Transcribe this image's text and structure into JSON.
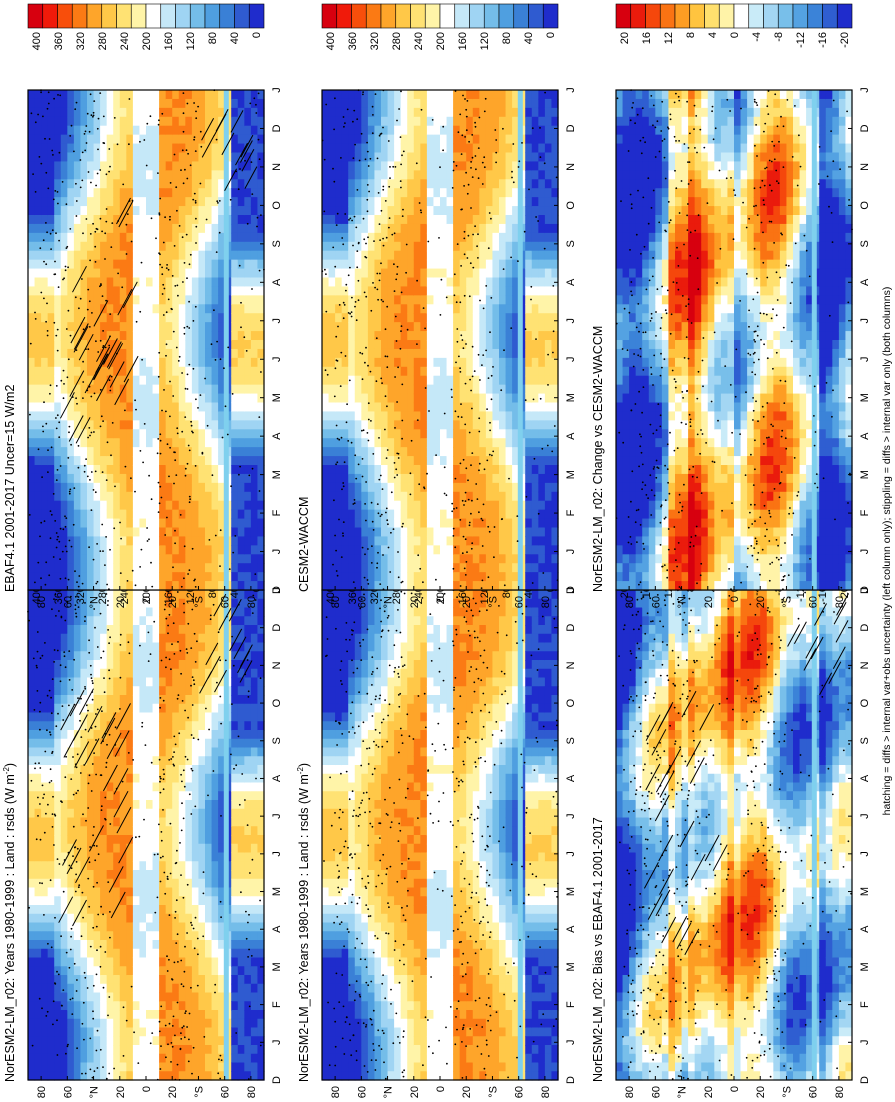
{
  "footer_note": "hatching = diffs > internal var+obs uncertainty (left column only); stippling = diffs > internal var only (both columns)",
  "chart_data": [
    {
      "type": "heatmap",
      "id": "p1",
      "title": "NorESM2-LM_r02: Years 1980-1999 : Land : rsds (W m",
      "title_sup": "-2",
      "title_close": ")",
      "lat_ticks": [
        "80",
        "60",
        "°N",
        "20",
        "0",
        "20",
        "°S",
        "60",
        "80"
      ],
      "month_ticks": [
        "D",
        "J",
        "F",
        "M",
        "A",
        "M",
        "J",
        "J",
        "A",
        "S",
        "O",
        "N",
        "D",
        "J"
      ],
      "colorbar_labels": [
        "400",
        "360",
        "320",
        "280",
        "240",
        "200",
        "160",
        "120",
        "80",
        "40",
        "0"
      ],
      "scheme": "abs",
      "hatch": true,
      "seed": 11
    },
    {
      "type": "heatmap",
      "id": "p2",
      "title": "NorESM2-LM_r02: Years 1980-1999 : Land : rsds (W m",
      "title_sup": "-2",
      "title_close": ")",
      "lat_ticks": [
        "80",
        "60",
        "°N",
        "20",
        "0",
        "20",
        "°S",
        "60",
        "80"
      ],
      "month_ticks": [
        "D",
        "J",
        "F",
        "M",
        "A",
        "M",
        "J",
        "J",
        "A",
        "S",
        "O",
        "N",
        "D",
        "J"
      ],
      "colorbar_labels": [
        "400",
        "360",
        "320",
        "280",
        "240",
        "200",
        "160",
        "120",
        "80",
        "40",
        "0"
      ],
      "scheme": "abs",
      "hatch": false,
      "seed": 23
    },
    {
      "type": "heatmap",
      "id": "p3",
      "title": "EBAF4.1 2001-2017 Uncer=15 W/m2",
      "title_sup": "",
      "title_close": "",
      "lat_ticks": [
        "80",
        "60",
        "°N",
        "20",
        "0",
        "20",
        "°S",
        "60",
        "80"
      ],
      "month_ticks": [
        "D",
        "J",
        "F",
        "M",
        "A",
        "M",
        "J",
        "J",
        "A",
        "S",
        "O",
        "N",
        "D",
        "J"
      ],
      "colorbar_labels": [
        "400",
        "360",
        "320",
        "280",
        "240",
        "200",
        "160",
        "120",
        "80",
        "40",
        "0"
      ],
      "scheme": "abs",
      "hatch": true,
      "seed": 37
    },
    {
      "type": "heatmap",
      "id": "p4",
      "title": "CESM2-WACCM",
      "title_sup": "",
      "title_close": "",
      "lat_ticks": [
        "80",
        "60",
        "°N",
        "20",
        "0",
        "20",
        "°S",
        "60",
        "80"
      ],
      "month_ticks": [
        "D",
        "J",
        "F",
        "M",
        "A",
        "M",
        "J",
        "J",
        "A",
        "S",
        "O",
        "N",
        "D",
        "J"
      ],
      "colorbar_labels": [
        "400",
        "360",
        "320",
        "280",
        "240",
        "200",
        "160",
        "120",
        "80",
        "40",
        "0"
      ],
      "scheme": "abs",
      "hatch": false,
      "seed": 41
    },
    {
      "type": "heatmap",
      "id": "p5",
      "title": "NorESM2-LM_r02: Bias vs EBAF4.1 2001-2017",
      "title_sup": "",
      "title_close": "",
      "lat_ticks": [
        "80",
        "60",
        "°N",
        "20",
        "0",
        "20",
        "°S",
        "60",
        "80"
      ],
      "month_ticks": [
        "D",
        "J",
        "F",
        "M",
        "A",
        "M",
        "J",
        "J",
        "A",
        "S",
        "O",
        "N",
        "D",
        "J"
      ],
      "colorbar_labels": [
        "20",
        "16",
        "12",
        "8",
        "4",
        "0",
        "-4",
        "-8",
        "-12",
        "-16",
        "-20"
      ],
      "scheme": "diff",
      "hatch": true,
      "seed": 53
    },
    {
      "type": "heatmap",
      "id": "p6",
      "title": "NorESM2-LM_r02: Change vs CESM2-WACCM",
      "title_sup": "",
      "title_close": "",
      "lat_ticks": [
        "80",
        "60",
        "°N",
        "20",
        "0",
        "20",
        "°S",
        "60",
        "80"
      ],
      "month_ticks": [
        "D",
        "J",
        "F",
        "M",
        "A",
        "M",
        "J",
        "J",
        "A",
        "S",
        "O",
        "N",
        "D",
        "J"
      ],
      "colorbar_labels": [
        "20",
        "16",
        "12",
        "8",
        "4",
        "0",
        "-4",
        "-8",
        "-12",
        "-16",
        "-20"
      ],
      "scheme": "diff",
      "hatch": false,
      "seed": 67
    }
  ],
  "colors": {
    "abs": [
      "#d7000f",
      "#f01a0a",
      "#f84e0b",
      "#fb7a14",
      "#fea52a",
      "#ffc848",
      "#ffe273",
      "#fff4a8",
      "#ffffff",
      "#c5e8f8",
      "#9fd4f3",
      "#74bde9",
      "#4f9fe0",
      "#3a80d6",
      "#2f5bd0",
      "#1f2ccc"
    ],
    "diff": [
      "#d7000f",
      "#ea1b0c",
      "#f5470c",
      "#fa7313",
      "#fd9d23",
      "#ffc43f",
      "#ffe06e",
      "#fff3a8",
      "#ffffff",
      "#c9ebf8",
      "#a3d6f3",
      "#78bfea",
      "#54a2e2",
      "#3b83d8",
      "#2f5ed1",
      "#1f2ccc"
    ]
  }
}
